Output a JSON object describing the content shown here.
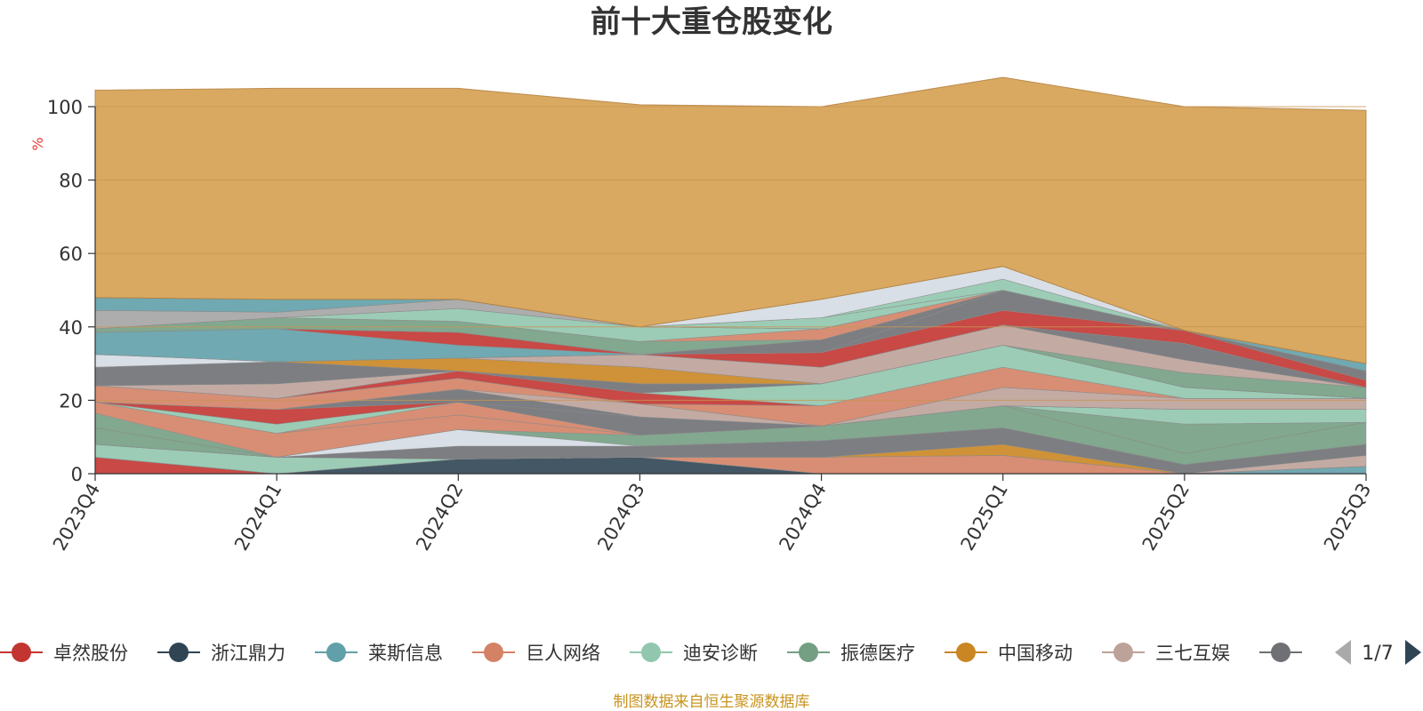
{
  "title": "前十大重仓股变化",
  "source": "制图数据来自恒生聚源数据库",
  "pager": {
    "label": "1/7"
  },
  "colors": {
    "background_area": "#d9a962",
    "unit": "#e53935",
    "source": "#c8941f",
    "axis": "#333333",
    "grid": "#c99552",
    "pager_prev": "#aaaaaa",
    "pager_next": "#2f4554"
  },
  "chart_data": {
    "type": "area",
    "stacked": true,
    "xlabel": "",
    "ylabel": "%",
    "ylim": [
      0,
      100
    ],
    "yticks": [
      0,
      20,
      40,
      60,
      80,
      100
    ],
    "grid": true,
    "legend_position": "bottom",
    "categories": [
      "2023Q4",
      "2024Q1",
      "2024Q2",
      "2024Q3",
      "2024Q4",
      "2025Q1",
      "2025Q2",
      "2025Q3"
    ],
    "series": [
      {
        "name": "卓然股份",
        "color": "#c23531",
        "values": [
          4.5,
          0,
          0,
          0,
          0,
          0,
          0,
          0
        ]
      },
      {
        "name": "浙江鼎力",
        "color": "#2f4554",
        "values": [
          0,
          0,
          4,
          4.5,
          0,
          0,
          0,
          0
        ]
      },
      {
        "name": "莱斯信息",
        "color": "#61a0a8",
        "values": [
          0,
          0,
          0,
          0,
          0,
          0,
          0,
          2
        ]
      },
      {
        "name": "巨人网络",
        "color": "#d48265",
        "values": [
          0,
          0,
          0,
          0,
          4.5,
          5,
          0,
          0
        ]
      },
      {
        "name": "迪安诊断",
        "color": "#91c7ae",
        "values": [
          3.5,
          4.5,
          0,
          0,
          0,
          0,
          0,
          0
        ]
      },
      {
        "name": "振德医疗",
        "color": "#749f83",
        "values": [
          0,
          0,
          0,
          0,
          0,
          0,
          0,
          0
        ]
      },
      {
        "name": "中国移动",
        "color": "#ca8622",
        "values": [
          0,
          0,
          0,
          0,
          0,
          3,
          0,
          0
        ]
      },
      {
        "name": "三七互娱",
        "color": "#bda29a",
        "values": [
          0,
          0,
          0,
          0,
          0,
          0,
          0,
          3
        ]
      },
      {
        "name": "",
        "color": "#6e7074",
        "values": [
          0,
          0,
          3.5,
          3,
          4.5,
          4.5,
          2.5,
          3
        ]
      },
      {
        "values": [
          4.5,
          0,
          0,
          0,
          0,
          0,
          0,
          0
        ],
        "color": "#749f83"
      },
      {
        "values": [
          0,
          0,
          4.5,
          0,
          0,
          0,
          0,
          0
        ],
        "color": "#d4dbe3"
      },
      {
        "values": [
          4,
          0,
          0,
          3,
          4,
          6,
          3,
          6
        ],
        "color": "#749f83"
      },
      {
        "values": [
          3,
          6.5,
          4,
          0,
          0,
          0,
          0,
          0
        ],
        "color": "#d48265"
      },
      {
        "values": [
          0,
          0,
          0,
          0,
          0,
          0,
          8,
          0
        ],
        "color": "#749f83"
      },
      {
        "values": [
          0,
          0,
          3.5,
          0,
          0,
          0,
          0,
          0
        ],
        "color": "#d48265"
      },
      {
        "values": [
          0,
          2.5,
          0,
          0,
          0,
          0,
          4,
          3.5
        ],
        "color": "#91c7ae"
      },
      {
        "values": [
          0,
          0,
          0,
          5,
          0,
          0,
          0,
          0
        ],
        "color": "#6e7074"
      },
      {
        "values": [
          0,
          4,
          0,
          0,
          0,
          0,
          0,
          0
        ],
        "color": "#c23531"
      },
      {
        "values": [
          0,
          0,
          3.5,
          0,
          0,
          0,
          0,
          0
        ],
        "color": "#6e7074"
      },
      {
        "values": [
          0,
          0,
          0,
          3.5,
          0,
          5,
          3,
          3
        ],
        "color": "#bda29a"
      },
      {
        "values": [
          4.5,
          3,
          3,
          0,
          0,
          0,
          0,
          0
        ],
        "color": "#d48265"
      },
      {
        "values": [
          0,
          0,
          0,
          0,
          5.5,
          5.5,
          0,
          0
        ],
        "color": "#d48265"
      },
      {
        "values": [
          0,
          0,
          2,
          3,
          0,
          0,
          0,
          0
        ],
        "color": "#c23531"
      },
      {
        "values": [
          0,
          0,
          0,
          0,
          6,
          6,
          3,
          0
        ],
        "color": "#91c7ae"
      },
      {
        "values": [
          0,
          4,
          0,
          0,
          0,
          0,
          0,
          0
        ],
        "color": "#bda29a"
      },
      {
        "values": [
          0,
          0,
          0,
          2.5,
          0,
          0,
          0,
          0
        ],
        "color": "#6e7074"
      },
      {
        "values": [
          5,
          6,
          0,
          0,
          0,
          0,
          0,
          0
        ],
        "color": "#6e7074"
      },
      {
        "values": [
          0,
          0,
          0,
          0,
          0,
          0,
          4,
          3
        ],
        "color": "#749f83"
      },
      {
        "values": [
          0,
          0,
          3.5,
          4.5,
          0,
          0,
          0,
          0
        ],
        "color": "#ca8622"
      },
      {
        "values": [
          0,
          0,
          0,
          3.5,
          4.5,
          5.5,
          3.5,
          0
        ],
        "color": "#bda29a"
      },
      {
        "values": [
          3.5,
          0,
          0,
          0,
          0,
          0,
          0,
          0
        ],
        "color": "#d4dbe3"
      },
      {
        "values": [
          0,
          0,
          0,
          0,
          0,
          0,
          4.5,
          0
        ],
        "color": "#6e7074"
      },
      {
        "values": [
          6,
          9,
          3.5,
          0,
          0,
          0,
          0,
          0
        ],
        "color": "#61a0a8"
      },
      {
        "values": [
          0,
          0,
          3.5,
          0,
          4,
          4,
          3.5,
          2
        ],
        "color": "#c23531"
      },
      {
        "values": [
          0,
          0,
          0,
          0,
          0,
          5.5,
          0,
          0
        ],
        "color": "#6e7074"
      },
      {
        "values": [
          0,
          0,
          0,
          0,
          3.5,
          0,
          0,
          0
        ],
        "color": "#6e7074"
      },
      {
        "values": [
          1,
          3,
          3,
          3.5,
          0,
          0,
          0,
          0
        ],
        "color": "#749f83"
      },
      {
        "values": [
          0,
          0,
          0,
          0,
          3,
          0,
          0,
          0
        ],
        "color": "#d48265"
      },
      {
        "values": [
          0,
          0,
          3.5,
          4,
          0,
          0,
          0,
          0
        ],
        "color": "#91c7ae"
      },
      {
        "values": [
          0,
          0,
          0,
          0,
          0,
          0,
          0,
          2.5
        ],
        "color": "#6e7074"
      },
      {
        "values": [
          5,
          1.5,
          2.5,
          0,
          0,
          0,
          0,
          0
        ],
        "color": "#a5a4a4"
      },
      {
        "values": [
          0,
          0,
          0,
          0,
          3,
          0,
          0,
          0
        ],
        "color": "#91c7ae"
      },
      {
        "values": [
          3.5,
          3.5,
          0,
          0,
          0,
          0,
          0,
          2
        ],
        "color": "#61a0a8"
      },
      {
        "values": [
          0,
          0,
          0,
          0,
          0,
          3,
          0,
          0
        ],
        "color": "#91c7ae"
      },
      {
        "values": [
          0,
          0,
          0,
          0,
          5,
          3.5,
          0,
          0
        ],
        "color": "#d4dbe3"
      },
      {
        "values": [
          56.5,
          57.5,
          57.5,
          60.5,
          52.5,
          51.5,
          61,
          69
        ],
        "color": "#d9a962"
      }
    ]
  }
}
